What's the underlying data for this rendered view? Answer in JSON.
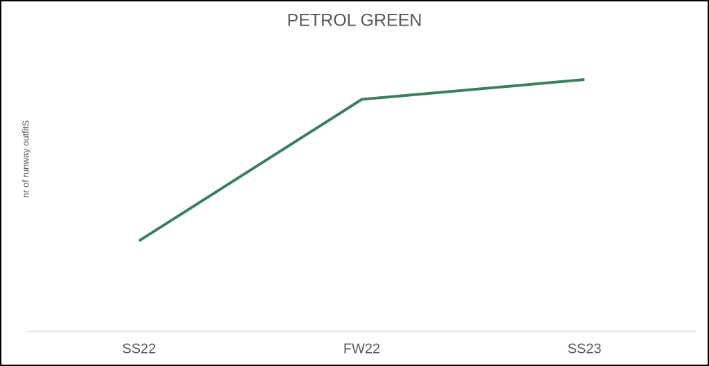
{
  "chart_data": {
    "type": "line",
    "title": "PETROL GREEN",
    "y_label": "nr of runway outfitS",
    "categories": [
      "SS22",
      "FW22",
      "SS23"
    ],
    "series": [
      {
        "name": "PETROL GREEN",
        "color": "#3b7f5f",
        "values": [
          32,
          82,
          89
        ]
      }
    ],
    "ylim": [
      0,
      100
    ]
  }
}
